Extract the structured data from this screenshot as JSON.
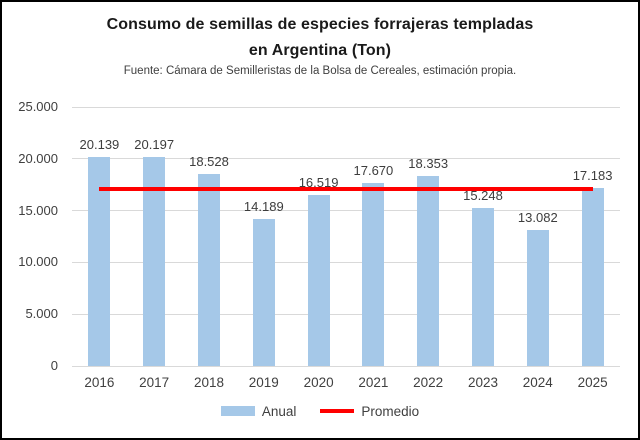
{
  "title": {
    "line1": "Consumo de semillas de especies forrajeras templadas",
    "line2": "en Argentina (Ton)",
    "subtitle": "Fuente: Cámara de Semilleristas de la Bolsa de Cereales, estimación propia."
  },
  "legend": {
    "items": [
      {
        "label": "Anual",
        "swatch": "bar"
      },
      {
        "label": "Promedio",
        "swatch": "line"
      }
    ]
  },
  "chart_data": {
    "type": "bar",
    "title": "Consumo de semillas de especies forrajeras templadas en Argentina (Ton)",
    "subtitle": "Fuente: Cámara de Semilleristas de la Bolsa de Cereales, estimación propia.",
    "categories": [
      "2016",
      "2017",
      "2018",
      "2019",
      "2020",
      "2021",
      "2022",
      "2023",
      "2024",
      "2025"
    ],
    "series": [
      {
        "name": "Anual",
        "type": "bar",
        "color": "#a5c8e8",
        "values": [
          20139,
          20197,
          18528,
          14189,
          16519,
          17670,
          18353,
          15248,
          13082,
          17183
        ],
        "value_labels": [
          "20.139",
          "20.197",
          "18.528",
          "14.189",
          "16.519",
          "17.670",
          "18.353",
          "15.248",
          "13.082",
          "17.183"
        ]
      },
      {
        "name": "Promedio",
        "type": "line",
        "color": "#ff0000",
        "value": 17111
      }
    ],
    "y_axis": {
      "min": 0,
      "max": 25000,
      "ticks": [
        {
          "label": "0",
          "value": 0
        },
        {
          "label": "5.000",
          "value": 5000
        },
        {
          "label": "10.000",
          "value": 10000
        },
        {
          "label": "15.000",
          "value": 15000
        },
        {
          "label": "20.000",
          "value": 20000
        },
        {
          "label": "25.000",
          "value": 25000
        }
      ]
    },
    "grid": true,
    "data_labels": "outside-end",
    "legend_position": "bottom"
  },
  "colors": {
    "bar": "#a5c8e8",
    "promedio_line": "#ff0000",
    "gridline": "#d9d9d9",
    "text": "#404040",
    "border": "#000000",
    "background": "#ffffff"
  }
}
